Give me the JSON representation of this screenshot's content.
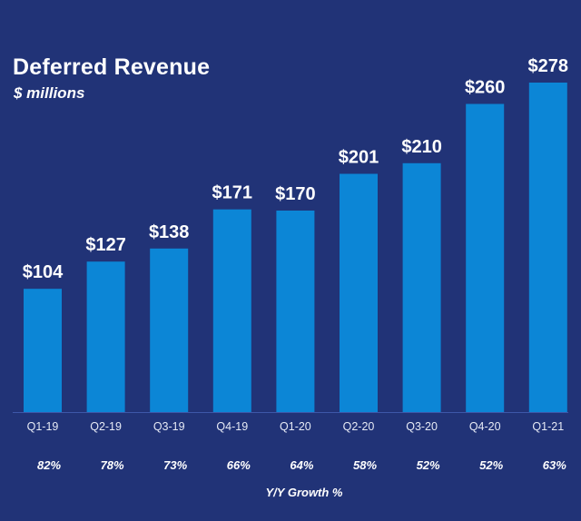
{
  "chart_data": {
    "type": "bar",
    "title": "Deferred Revenue",
    "subtitle": "$ millions",
    "categories": [
      "Q1-19",
      "Q2-19",
      "Q3-19",
      "Q4-19",
      "Q1-20",
      "Q2-20",
      "Q3-20",
      "Q4-20",
      "Q1-21"
    ],
    "values": [
      104,
      127,
      138,
      171,
      170,
      201,
      210,
      260,
      278
    ],
    "value_labels": [
      "$104",
      "$127",
      "$138",
      "$171",
      "$170",
      "$201",
      "$210",
      "$260",
      "$278"
    ],
    "growth": [
      "82%",
      "78%",
      "73%",
      "66%",
      "64%",
      "58%",
      "52%",
      "52%",
      "63%"
    ],
    "growth_label": "Y/Y Growth %",
    "ylim": [
      0,
      278
    ],
    "grid": false,
    "legend": "none"
  },
  "colors": {
    "background": "#213377",
    "bar": "#0C86D6",
    "baseline": "#3E57A8",
    "text": "#ffffff",
    "tick_text": "#E6EAF5"
  }
}
